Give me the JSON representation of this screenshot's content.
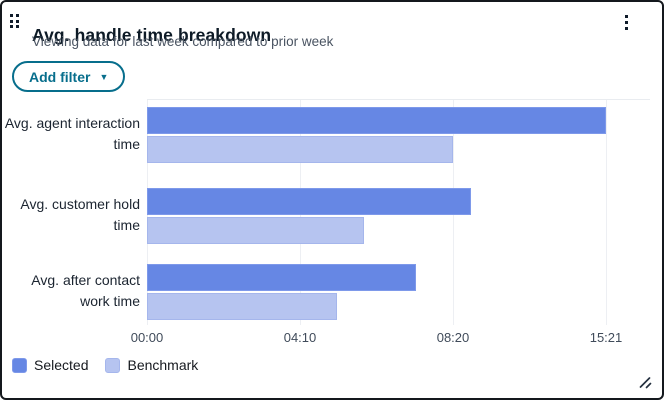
{
  "header": {
    "title": "Avg. handle time breakdown",
    "subtitle": "Viewing data for last week compared to prior week"
  },
  "toolbar": {
    "add_filter_label": "Add filter"
  },
  "icons": {
    "drag_handle": "six-dot-grid",
    "overflow_menu": "vertical-ellipsis",
    "chevron_down": "▼",
    "resize": "diagonal-lines"
  },
  "colors": {
    "accent_teal": "#076e8c",
    "selected_bar": "#6687e4",
    "selected_bar_border": "#7e99ea",
    "benchmark_bar": "#b6c4f0",
    "benchmark_bar_border": "#a5b6ec",
    "gridline": "#edeff3",
    "card_border": "#14181d"
  },
  "chart_data": {
    "type": "bar",
    "orientation": "horizontal",
    "title": "Avg. handle time breakdown",
    "xlabel": "",
    "ylabel": "",
    "grid": true,
    "legend_position": "bottom",
    "categories": [
      "Avg. agent interaction time",
      "Avg. customer hold time",
      "Avg. after contact work time"
    ],
    "series": [
      {
        "name": "Selected",
        "color": "#6687e4",
        "border_color": "#7e99ea",
        "values": [
          "15:21",
          "09:10",
          "07:20"
        ],
        "values_seconds": [
          921,
          550,
          440
        ]
      },
      {
        "name": "Benchmark",
        "color": "#b6c4f0",
        "border_color": "#a5b6ec",
        "values": [
          "08:20",
          "05:55",
          "05:10"
        ],
        "values_seconds": [
          500,
          355,
          310
        ]
      }
    ],
    "x_ticks": [
      {
        "label": "00:00",
        "seconds": 0
      },
      {
        "label": "04:10",
        "seconds": 250
      },
      {
        "label": "08:20",
        "seconds": 500
      },
      {
        "label": "15:21",
        "seconds": 921
      }
    ],
    "xlim_seconds": [
      0,
      921
    ]
  }
}
